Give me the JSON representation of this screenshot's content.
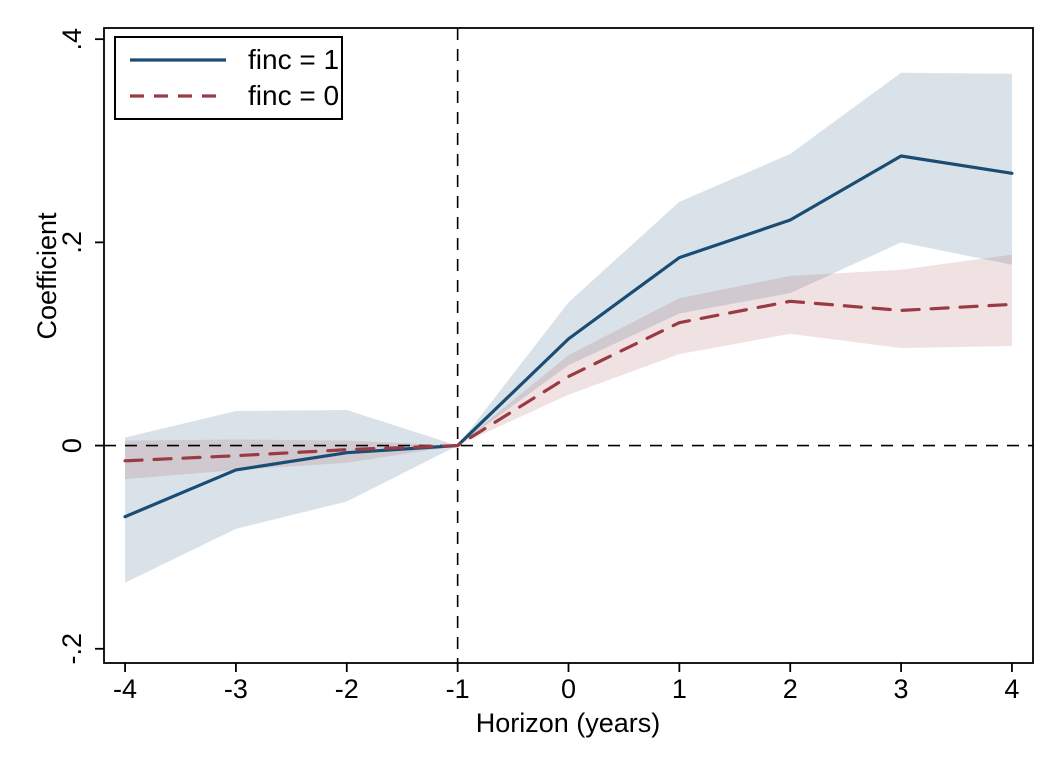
{
  "figure": {
    "background": "#ffffff",
    "axis_color": "#000000"
  },
  "chart_data": {
    "type": "line",
    "title": "",
    "xlabel": "Horizon (years)",
    "ylabel": "Coefficient",
    "x": [
      -4,
      -3,
      -2,
      -1,
      0,
      1,
      2,
      3,
      4
    ],
    "series": [
      {
        "name": "finc = 1",
        "style": "solid",
        "color": "#1b4d74",
        "line_width": 3.2,
        "legend_dash": "none",
        "band_opacity": 0.16,
        "values": [
          -0.07,
          -0.024,
          -0.007,
          0,
          0.105,
          0.185,
          0.222,
          0.285,
          0.268
        ],
        "ci_lower": [
          -0.135,
          -0.082,
          -0.055,
          0,
          0.079,
          0.13,
          0.15,
          0.2,
          0.178
        ],
        "ci_upper": [
          0.008,
          0.034,
          0.035,
          0,
          0.141,
          0.24,
          0.287,
          0.367,
          0.366
        ]
      },
      {
        "name": "finc = 0",
        "style": "dashed",
        "color": "#9a3b44",
        "line_width": 3.2,
        "dash": "17 12",
        "legend_dash": "14 10",
        "band_opacity": 0.15,
        "values": [
          -0.015,
          -0.01,
          -0.004,
          0,
          0.068,
          0.121,
          0.142,
          0.133,
          0.139
        ],
        "ci_lower": [
          -0.033,
          -0.024,
          -0.017,
          0,
          0.05,
          0.09,
          0.11,
          0.096,
          0.098
        ],
        "ci_upper": [
          0.005,
          0.006,
          0.005,
          0,
          0.089,
          0.145,
          0.167,
          0.173,
          0.188
        ]
      }
    ],
    "xticks": [
      -4,
      -3,
      -2,
      -1,
      0,
      1,
      2,
      3,
      4
    ],
    "xtick_labels": [
      "-4",
      "-3",
      "-2",
      "-1",
      "0",
      "1",
      "2",
      "3",
      "4"
    ],
    "yticks": [
      0.4,
      0.2,
      0,
      -0.2
    ],
    "ytick_labels": [
      ".4",
      ".2",
      "0",
      "-.2"
    ],
    "xlim": [
      -4.19,
      4.19
    ],
    "ylim": [
      -0.214,
      0.411
    ],
    "reference_lines": {
      "vline_x": -1,
      "hline_y": 0,
      "color": "#000000",
      "dash": "12 9"
    },
    "grid": false,
    "legend_position": "top-left"
  }
}
